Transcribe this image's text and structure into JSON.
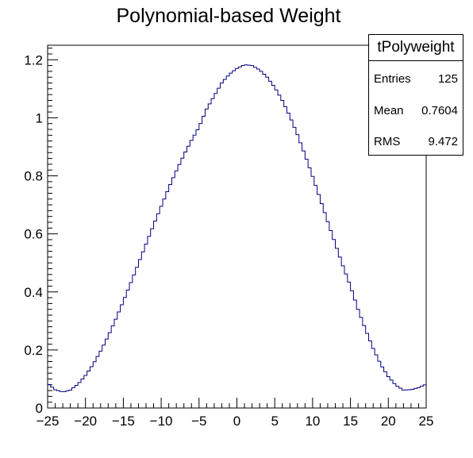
{
  "chart_data": {
    "type": "histogram",
    "title": "Polynomial-based Weight",
    "xlim": [
      -25,
      25
    ],
    "ylim": [
      0,
      1.25
    ],
    "bins": 125,
    "x_ticks": [
      "−25",
      "−20",
      "−15",
      "−10",
      "−5",
      "0",
      "5",
      "10",
      "15",
      "20",
      "25"
    ],
    "y_ticks": [
      "0",
      "0.2",
      "0.4",
      "0.6",
      "0.8",
      "1",
      "1.2"
    ],
    "x_tick_values": [
      -25,
      -20,
      -15,
      -10,
      -5,
      0,
      5,
      10,
      15,
      20,
      25
    ],
    "y_tick_values": [
      0,
      0.2,
      0.4,
      0.6,
      0.8,
      1.0,
      1.2
    ],
    "curve": {
      "x": [
        -25,
        -24,
        -23,
        -22,
        -21,
        -20,
        -19,
        -18,
        -17,
        -16,
        -15,
        -14,
        -13,
        -12,
        -11,
        -10,
        -9,
        -8,
        -7,
        -6,
        -5,
        -4,
        -3,
        -2,
        -1,
        0,
        1,
        2,
        3,
        4,
        5,
        6,
        7,
        8,
        9,
        10,
        11,
        12,
        13,
        14,
        15,
        16,
        17,
        18,
        19,
        20,
        21,
        22,
        23,
        24,
        25
      ],
      "y": [
        0.085,
        0.063,
        0.055,
        0.062,
        0.082,
        0.112,
        0.15,
        0.196,
        0.248,
        0.306,
        0.368,
        0.432,
        0.498,
        0.565,
        0.631,
        0.695,
        0.758,
        0.817,
        0.872,
        0.922,
        0.968,
        1.03,
        1.075,
        1.12,
        1.15,
        1.17,
        1.183,
        1.18,
        1.165,
        1.14,
        1.105,
        1.06,
        1.005,
        0.942,
        0.872,
        0.798,
        0.72,
        0.642,
        0.565,
        0.49,
        0.42,
        0.34,
        0.27,
        0.205,
        0.15,
        0.108,
        0.078,
        0.062,
        0.063,
        0.07,
        0.082
      ]
    },
    "line_color": "#00007f",
    "stats": {
      "name": "tPolyweight",
      "rows": [
        {
          "label": "Entries",
          "value": "125"
        },
        {
          "label": "Mean",
          "value": "0.7604"
        },
        {
          "label": "RMS",
          "value": "9.472"
        }
      ]
    }
  }
}
